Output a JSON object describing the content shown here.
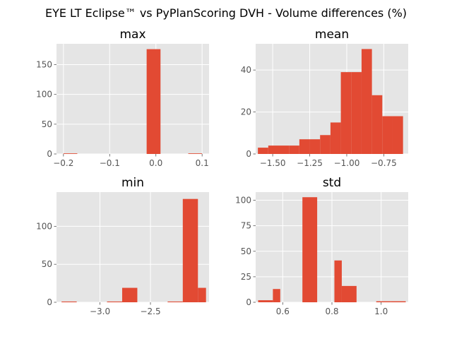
{
  "figure": {
    "title": "EYE LT Eclipse™ vs PyPlanScoring DVH - Volume differences (%)"
  },
  "style": {
    "bar_color": "#E24A33",
    "axes_bg": "#E5E5E5",
    "grid_color": "#FFFFFF",
    "tick_color": "#555555"
  },
  "chart_data": [
    {
      "type": "bar",
      "title": "max",
      "xlim": [
        -0.215,
        0.115
      ],
      "ylim": [
        0,
        185
      ],
      "bin_edges": [
        -0.2,
        -0.17,
        -0.14,
        -0.11,
        -0.08,
        -0.05,
        -0.02,
        0.01,
        0.04,
        0.07,
        0.1
      ],
      "counts": [
        1,
        0,
        0,
        0,
        0,
        0,
        176,
        0,
        0,
        1
      ],
      "xticks": [
        -0.2,
        -0.1,
        0.0,
        0.1
      ],
      "xtick_labels": [
        "−0.2",
        "−0.1",
        "0.0",
        "0.1"
      ],
      "yticks": [
        0,
        50,
        100,
        150
      ],
      "ytick_labels": [
        "0",
        "50",
        "100",
        "150"
      ],
      "grid": true
    },
    {
      "type": "bar",
      "title": "mean",
      "xlim": [
        -1.615,
        -0.585
      ],
      "ylim": [
        0,
        52.5
      ],
      "bin_edges": [
        -1.6,
        -1.53,
        -1.46,
        -1.39,
        -1.32,
        -1.25,
        -1.18,
        -1.11,
        -1.04,
        -0.97,
        -0.9,
        -0.83,
        -0.76,
        -0.69,
        -0.62
      ],
      "counts": [
        3,
        4,
        4,
        4,
        7,
        7,
        9,
        15,
        39,
        39,
        50,
        28,
        18,
        18
      ],
      "xticks": [
        -1.5,
        -1.25,
        -1.0,
        -0.75
      ],
      "xtick_labels": [
        "−1.50",
        "−1.25",
        "−1.00",
        "−0.75"
      ],
      "yticks": [
        0,
        20,
        40
      ],
      "ytick_labels": [
        "0",
        "20",
        "40"
      ],
      "grid": true
    },
    {
      "type": "bar",
      "title": "min",
      "xlim": [
        -3.43,
        -1.92
      ],
      "ylim": [
        0,
        145
      ],
      "bin_edges": [
        -3.38,
        -3.23,
        -3.08,
        -2.93,
        -2.78,
        -2.63,
        -2.48,
        -2.33,
        -2.18,
        -2.03,
        -1.95
      ],
      "counts": [
        1,
        0,
        0,
        1,
        19,
        0,
        0,
        1,
        136,
        19
      ],
      "xticks": [
        -3.0,
        -2.5
      ],
      "xtick_labels": [
        "−3.0",
        "−2.5"
      ],
      "yticks": [
        0,
        50,
        100
      ],
      "ytick_labels": [
        "0",
        "50",
        "100"
      ],
      "grid": true
    },
    {
      "type": "bar",
      "title": "std",
      "xlim": [
        0.49,
        1.11
      ],
      "ylim": [
        0,
        108
      ],
      "bin_edges": [
        0.5,
        0.56,
        0.59,
        0.62,
        0.68,
        0.74,
        0.81,
        0.84,
        0.9,
        0.98,
        1.04,
        1.1
      ],
      "counts": [
        2,
        13,
        0,
        0,
        103,
        0,
        41,
        16,
        0,
        1,
        1
      ],
      "xticks": [
        0.6,
        0.8,
        1.0
      ],
      "xtick_labels": [
        "0.6",
        "0.8",
        "1.0"
      ],
      "yticks": [
        0,
        25,
        50,
        75,
        100
      ],
      "ytick_labels": [
        "0",
        "25",
        "50",
        "75",
        "100"
      ],
      "grid": true
    }
  ]
}
